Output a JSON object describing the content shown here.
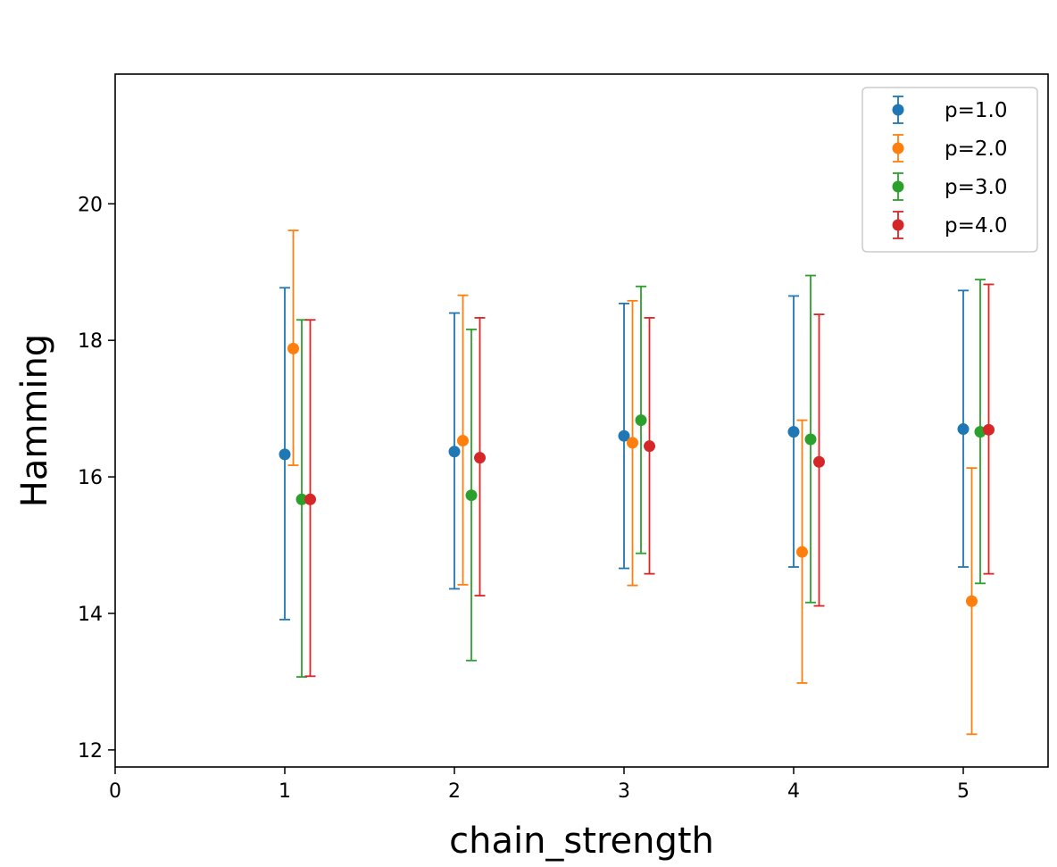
{
  "chart_data": {
    "type": "scatter",
    "title": "",
    "xlabel": "chain_strength",
    "ylabel": "Hamming",
    "xlim": [
      0,
      5.5
    ],
    "ylim": [
      11.75,
      21.9
    ],
    "xticks": [
      0,
      1,
      2,
      3,
      4,
      5
    ],
    "xtick_labels": [
      "0",
      "1",
      "2",
      "3",
      "4",
      "5"
    ],
    "yticks": [
      12,
      14,
      16,
      18,
      20
    ],
    "ytick_labels": [
      "12",
      "14",
      "16",
      "18",
      "20"
    ],
    "grid": false,
    "legend_position": "upper right",
    "error_bars": true,
    "series": [
      {
        "name": "p=1.0",
        "color": "#1f77b4",
        "x": [
          1.0,
          2.0,
          3.0,
          4.0,
          5.0
        ],
        "y": [
          16.33,
          16.37,
          16.6,
          16.66,
          16.7
        ],
        "y_lower": [
          13.91,
          14.36,
          14.66,
          14.68,
          14.68
        ],
        "y_upper": [
          18.77,
          18.4,
          18.54,
          18.65,
          18.73
        ]
      },
      {
        "name": "p=2.0",
        "color": "#ff7f0e",
        "x": [
          1.05,
          2.05,
          3.05,
          4.05,
          5.05
        ],
        "y": [
          17.88,
          16.53,
          16.5,
          14.9,
          14.18
        ],
        "y_lower": [
          16.17,
          14.42,
          14.41,
          12.98,
          12.23
        ],
        "y_upper": [
          19.61,
          18.66,
          18.58,
          16.83,
          16.13
        ]
      },
      {
        "name": "p=3.0",
        "color": "#2ca02c",
        "x": [
          1.1,
          2.1,
          3.1,
          4.1,
          5.1
        ],
        "y": [
          15.67,
          15.73,
          16.83,
          16.55,
          16.66
        ],
        "y_lower": [
          13.07,
          13.31,
          14.88,
          14.16,
          14.44
        ],
        "y_upper": [
          18.3,
          18.16,
          18.79,
          18.95,
          18.89
        ]
      },
      {
        "name": "p=4.0",
        "color": "#d62728",
        "x": [
          1.15,
          2.15,
          3.15,
          4.15,
          5.15
        ],
        "y": [
          15.67,
          16.28,
          16.45,
          16.22,
          16.69
        ],
        "y_lower": [
          13.08,
          14.26,
          14.58,
          14.11,
          14.58
        ],
        "y_upper": [
          18.3,
          18.33,
          18.33,
          18.38,
          18.82
        ]
      }
    ]
  }
}
